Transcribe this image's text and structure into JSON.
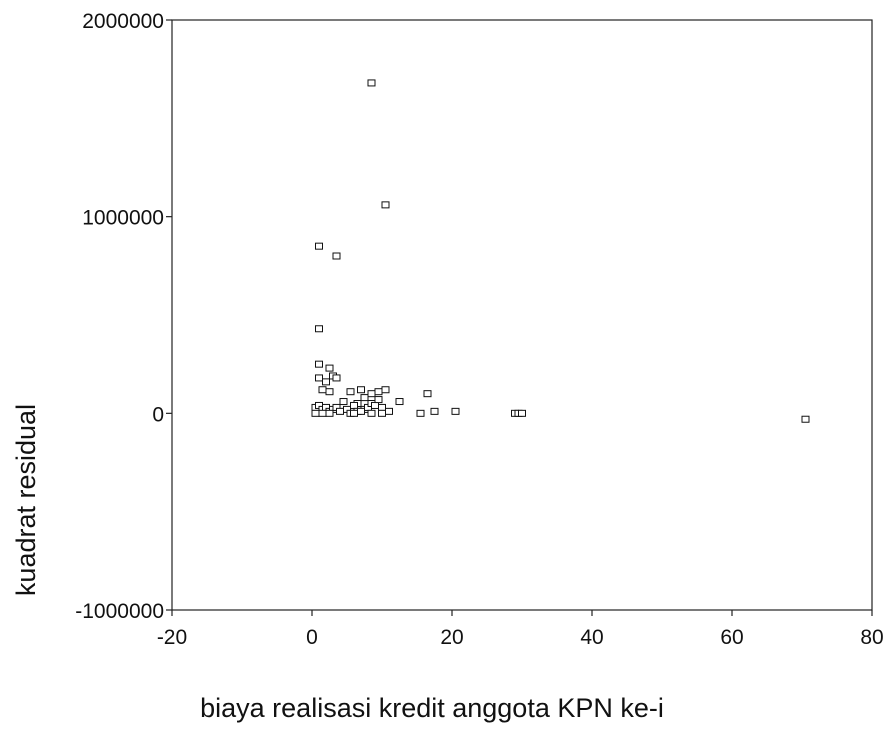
{
  "chart_data": {
    "type": "scatter",
    "title": "",
    "xlabel": "biaya realisasi kredit anggota KPN ke-i",
    "ylabel": "kuadrat residual",
    "xlim": [
      -20,
      80
    ],
    "ylim": [
      -1000000,
      2000000
    ],
    "x_ticks": [
      -20,
      0,
      20,
      40,
      60,
      80
    ],
    "y_ticks": [
      -1000000,
      0,
      1000000,
      2000000
    ],
    "x_tick_labels": [
      "-20",
      "0",
      "20",
      "40",
      "60",
      "80"
    ],
    "y_tick_labels": [
      "-1000000",
      "0",
      "1000000",
      "2000000"
    ],
    "grid": false,
    "legend": "none",
    "marker": "open-square",
    "series": [
      {
        "x": [
          8.5,
          10.5,
          1.0,
          3.5,
          1.0,
          1.0,
          1.0,
          2.0,
          2.5,
          3.0,
          1.5,
          2.5,
          3.5,
          5.5,
          7.0,
          8.5,
          9.5,
          10.5,
          7.5,
          4.5,
          6.5,
          12.5,
          16.5,
          0.5,
          1.0,
          1.5,
          2.0,
          2.5,
          3.0,
          3.5,
          4.0,
          5.0,
          6.0,
          6.5,
          7.5,
          8.0,
          8.5,
          9.0,
          9.5,
          10.0,
          11.0,
          0.5,
          1.5,
          2.5,
          5.5,
          6.0,
          7.0,
          8.5,
          10.0,
          15.5,
          17.5,
          20.5,
          29.0,
          29.5,
          30.0,
          70.5
        ],
        "y": [
          1680000,
          1060000,
          850000,
          800000,
          430000,
          250000,
          180000,
          160000,
          230000,
          190000,
          120000,
          110000,
          180000,
          110000,
          120000,
          100000,
          110000,
          120000,
          80000,
          60000,
          50000,
          60000,
          100000,
          30000,
          40000,
          20000,
          30000,
          10000,
          20000,
          30000,
          10000,
          20000,
          40000,
          10000,
          20000,
          30000,
          50000,
          40000,
          70000,
          30000,
          10000,
          0,
          0,
          0,
          0,
          0,
          10000,
          0,
          0,
          0,
          10000,
          10000,
          0,
          0,
          0,
          -30000
        ]
      }
    ]
  }
}
